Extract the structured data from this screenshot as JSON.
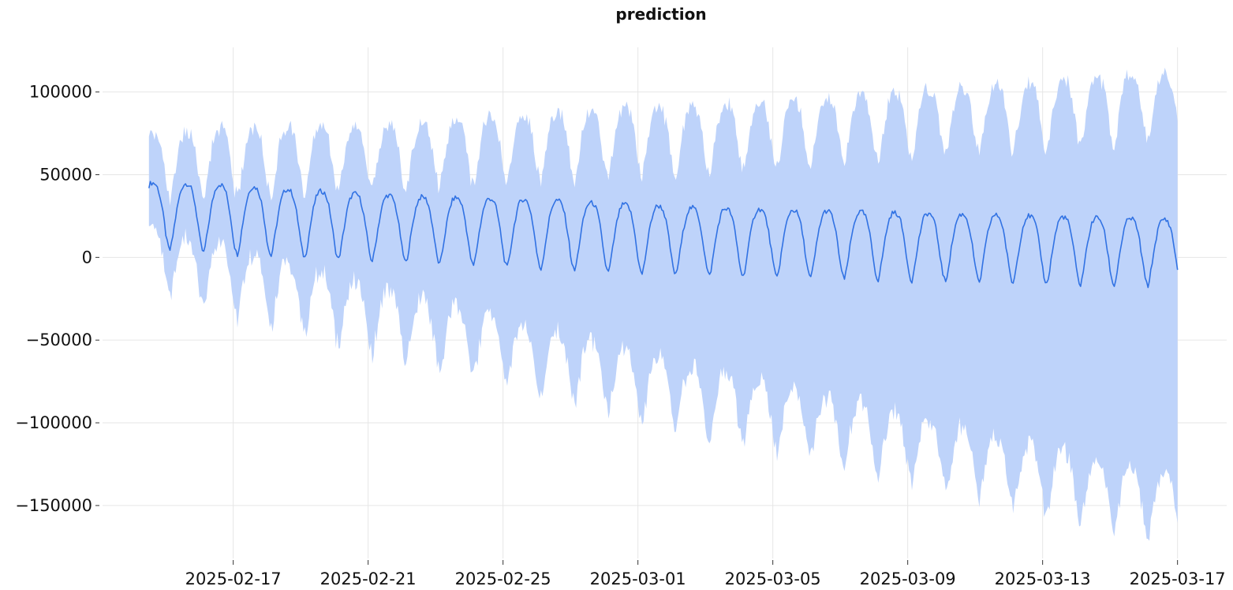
{
  "chart_data": {
    "type": "area",
    "title": "prediction",
    "xlabel": "",
    "ylabel": "",
    "x_start": "2025-02-14T12:00:00",
    "x_end": "2025-03-17T00:00:00",
    "xlim": [
      "2025-02-13T03:00:00",
      "2025-03-18T11:00:00"
    ],
    "ylim": [
      -182000,
      127000
    ],
    "x_tick_labels": [
      "2025-02-17",
      "2025-02-21",
      "2025-02-25",
      "2025-03-01",
      "2025-03-05",
      "2025-03-09",
      "2025-03-13",
      "2025-03-17"
    ],
    "y_ticks": [
      100000,
      50000,
      0,
      -50000,
      -100000,
      -150000
    ],
    "y_tick_labels": [
      "100000",
      "50000",
      "0",
      "−50000",
      "−100000",
      "−150000"
    ],
    "grid": true,
    "series": [
      {
        "type": "line",
        "color": "#3172e3",
        "description": "daily seasonal forecast, hourly samples",
        "daily_cycle": {
          "trough_hour": 3,
          "peak_hour": 14
        },
        "peaks": [
          45000,
          44500,
          44000,
          42500,
          41000,
          40000,
          38500,
          37500,
          36500,
          36000,
          35500,
          35000,
          34500,
          33000,
          32000,
          31000,
          30000,
          29500,
          29000,
          28500,
          28000,
          27500,
          27000,
          26500,
          26000,
          25500,
          25000,
          24500,
          24000,
          23500,
          23000
        ],
        "troughs": [
          6000,
          4500,
          3000,
          2000,
          1000,
          0,
          -1000,
          -2000,
          -3000,
          -4000,
          -5000,
          -6000,
          -7000,
          -8000,
          -9000,
          -10000,
          -10500,
          -11000,
          -11500,
          -12000,
          -12500,
          -13000,
          -13500,
          -14000,
          -14500,
          -15000,
          -15500,
          -16000,
          -16500,
          -17000,
          -17000
        ]
      },
      {
        "type": "band",
        "color": "#bed3fa",
        "description": "prediction interval",
        "upper_offset_start": 25000,
        "upper_offset_end": 85000,
        "lower_offset_start": 22000,
        "lower_offset_end": 150000
      }
    ]
  }
}
